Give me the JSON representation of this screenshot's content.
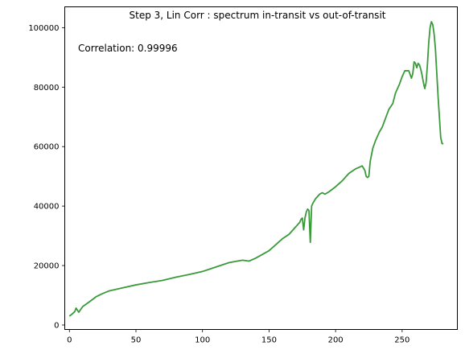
{
  "chart_data": {
    "type": "line",
    "title": "Step 3, Lin Corr : spectrum in-transit vs out-of-transit",
    "annotation": "Correlation: 0.99996",
    "xlabel": "",
    "ylabel": "",
    "xlim": [
      -3.5,
      291.5
    ],
    "ylim": [
      -1500,
      107000
    ],
    "xticks": [
      0,
      50,
      100,
      150,
      200,
      250
    ],
    "xtick_labels": [
      "0",
      "50",
      "100",
      "150",
      "200",
      "250"
    ],
    "yticks": [
      0,
      20000,
      40000,
      60000,
      80000,
      100000
    ],
    "ytick_labels": [
      "0",
      "20000",
      "40000",
      "60000",
      "80000",
      "100000"
    ],
    "grid": false,
    "legend": "none",
    "series": [
      {
        "color": "#3a9a3a",
        "x": [
          0,
          2,
          4,
          5,
          6,
          7,
          10,
          15,
          20,
          25,
          30,
          40,
          50,
          60,
          70,
          80,
          90,
          100,
          110,
          120,
          130,
          135,
          140,
          150,
          160,
          165,
          170,
          173,
          174,
          175,
          176,
          177,
          178,
          179,
          180,
          181,
          182,
          183,
          185,
          188,
          190,
          192,
          195,
          200,
          205,
          208,
          210,
          215,
          220,
          222,
          223,
          224,
          225,
          226,
          228,
          230,
          233,
          235,
          240,
          243,
          245,
          248,
          250,
          252,
          255,
          257,
          258,
          259,
          260,
          261,
          262,
          263,
          264,
          265,
          266,
          267,
          268,
          269,
          270,
          271,
          272,
          273,
          274,
          275,
          276,
          277,
          278,
          279,
          280,
          281
        ],
        "y": [
          3000,
          3700,
          4500,
          5700,
          5000,
          4300,
          6200,
          7800,
          9500,
          10600,
          11500,
          12500,
          13500,
          14300,
          15000,
          16100,
          17000,
          18000,
          19500,
          21000,
          21800,
          21500,
          22500,
          25000,
          29000,
          30500,
          33000,
          34500,
          35500,
          36000,
          32000,
          36000,
          38000,
          39000,
          38500,
          27800,
          40000,
          41000,
          42500,
          44000,
          44500,
          44000,
          44800,
          46500,
          48500,
          50000,
          51000,
          52500,
          53500,
          52000,
          50000,
          49600,
          50000,
          55000,
          59500,
          62000,
          65000,
          66500,
          72500,
          74500,
          78000,
          81000,
          83500,
          85500,
          85500,
          83000,
          84500,
          88500,
          88000,
          86500,
          88000,
          87500,
          86000,
          84000,
          81500,
          79500,
          81500,
          87500,
          95000,
          100000,
          102000,
          101000,
          98000,
          93000,
          85000,
          77000,
          70000,
          63000,
          61000,
          61000
        ]
      }
    ]
  }
}
